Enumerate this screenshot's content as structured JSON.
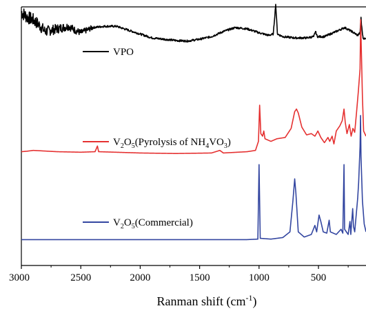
{
  "chart_data": {
    "type": "line",
    "title": "",
    "xlabel": "Ranman shift (cm",
    "xlabel_sup": "-1",
    "xlabel_close": ")",
    "ylabel": "",
    "xlim": [
      3000,
      100
    ],
    "x_reversed": true,
    "y_ticks_shown": false,
    "ylim": [
      0,
      10
    ],
    "x_ticks": [
      "3000",
      "2500",
      "2000",
      "1500",
      "1000",
      "500"
    ],
    "x_tick_values": [
      3000,
      2500,
      2000,
      1500,
      1000,
      500
    ],
    "grid": false,
    "legend": {
      "placement": "inline-left",
      "entries": [
        {
          "series_index": 0,
          "parts": [
            {
              "t": "VPO",
              "s": false
            }
          ]
        },
        {
          "series_index": 1,
          "parts": [
            {
              "t": "V",
              "s": false
            },
            {
              "t": "2",
              "s": true
            },
            {
              "t": "O",
              "s": false
            },
            {
              "t": "5",
              "s": true
            },
            {
              "t": "(Pyrolysis of NH",
              "s": false
            },
            {
              "t": "4",
              "s": true
            },
            {
              "t": "VO",
              "s": false
            },
            {
              "t": "3",
              "s": true
            },
            {
              "t": ")",
              "s": false
            }
          ]
        },
        {
          "series_index": 2,
          "parts": [
            {
              "t": "V",
              "s": false
            },
            {
              "t": "2",
              "s": true
            },
            {
              "t": "O",
              "s": false
            },
            {
              "t": "5",
              "s": true
            },
            {
              "t": "(Commercial)",
              "s": false
            }
          ]
        }
      ]
    },
    "series": [
      {
        "color": "#000000",
        "baseline": 8.9,
        "noise": {
          "from": 3000,
          "to": 2400,
          "amp": 0.55
        },
        "points": [
          [
            3000,
            9.8
          ],
          [
            2950,
            9.6
          ],
          [
            2900,
            9.5
          ],
          [
            2850,
            9.3
          ],
          [
            2800,
            9.05
          ],
          [
            2750,
            9.1
          ],
          [
            2700,
            9.15
          ],
          [
            2650,
            9.2
          ],
          [
            2600,
            9.25
          ],
          [
            2550,
            9.1
          ],
          [
            2500,
            9.0
          ],
          [
            2450,
            9.1
          ],
          [
            2400,
            9.2
          ],
          [
            2300,
            9.25
          ],
          [
            2200,
            9.25
          ],
          [
            2100,
            9.1
          ],
          [
            2000,
            8.95
          ],
          [
            1900,
            8.8
          ],
          [
            1800,
            8.75
          ],
          [
            1700,
            8.7
          ],
          [
            1600,
            8.68
          ],
          [
            1500,
            8.75
          ],
          [
            1400,
            8.85
          ],
          [
            1300,
            9.05
          ],
          [
            1200,
            9.2
          ],
          [
            1100,
            9.15
          ],
          [
            1000,
            9.0
          ],
          [
            920,
            8.9
          ],
          [
            880,
            8.95
          ],
          [
            860,
            10.1
          ],
          [
            845,
            8.95
          ],
          [
            800,
            8.85
          ],
          [
            700,
            8.8
          ],
          [
            600,
            8.8
          ],
          [
            540,
            8.85
          ],
          [
            525,
            9.05
          ],
          [
            510,
            8.85
          ],
          [
            450,
            8.85
          ],
          [
            350,
            9.05
          ],
          [
            280,
            9.2
          ],
          [
            220,
            9.05
          ],
          [
            170,
            8.9
          ],
          [
            150,
            9.0
          ],
          [
            142,
            9.6
          ],
          [
            138,
            9.3
          ],
          [
            125,
            8.8
          ],
          [
            100,
            8.75
          ]
        ]
      },
      {
        "color": "#e53030",
        "baseline": 4.4,
        "noise": {
          "from": 3000,
          "to": 0,
          "amp": 0
        },
        "points": [
          [
            3000,
            4.4
          ],
          [
            2950,
            4.42
          ],
          [
            2900,
            4.45
          ],
          [
            2700,
            4.4
          ],
          [
            2500,
            4.38
          ],
          [
            2380,
            4.4
          ],
          [
            2360,
            4.62
          ],
          [
            2350,
            4.4
          ],
          [
            2000,
            4.35
          ],
          [
            1700,
            4.33
          ],
          [
            1400,
            4.35
          ],
          [
            1330,
            4.45
          ],
          [
            1300,
            4.35
          ],
          [
            1100,
            4.4
          ],
          [
            1030,
            4.45
          ],
          [
            1005,
            4.8
          ],
          [
            995,
            6.2
          ],
          [
            985,
            5.1
          ],
          [
            970,
            5.0
          ],
          [
            960,
            5.2
          ],
          [
            950,
            4.9
          ],
          [
            900,
            4.8
          ],
          [
            850,
            4.9
          ],
          [
            780,
            4.95
          ],
          [
            730,
            5.3
          ],
          [
            700,
            5.95
          ],
          [
            685,
            6.05
          ],
          [
            670,
            5.9
          ],
          [
            640,
            5.35
          ],
          [
            600,
            5.05
          ],
          [
            560,
            5.1
          ],
          [
            530,
            5.0
          ],
          [
            505,
            5.2
          ],
          [
            480,
            4.95
          ],
          [
            450,
            4.75
          ],
          [
            420,
            4.95
          ],
          [
            405,
            4.8
          ],
          [
            385,
            5.0
          ],
          [
            370,
            4.7
          ],
          [
            350,
            5.2
          ],
          [
            320,
            5.4
          ],
          [
            300,
            5.6
          ],
          [
            285,
            6.05
          ],
          [
            275,
            5.55
          ],
          [
            260,
            5.1
          ],
          [
            240,
            5.45
          ],
          [
            225,
            5.0
          ],
          [
            210,
            5.3
          ],
          [
            195,
            5.15
          ],
          [
            180,
            5.9
          ],
          [
            165,
            6.7
          ],
          [
            150,
            7.6
          ],
          [
            145,
            9.5
          ],
          [
            140,
            8.5
          ],
          [
            130,
            6.5
          ],
          [
            120,
            5.2
          ],
          [
            100,
            5.0
          ]
        ]
      },
      {
        "color": "#3245a0",
        "baseline": 1.0,
        "noise": {
          "from": 3000,
          "to": 0,
          "amp": 0
        },
        "points": [
          [
            3000,
            1.0
          ],
          [
            2500,
            1.0
          ],
          [
            2000,
            1.0
          ],
          [
            1500,
            1.0
          ],
          [
            1100,
            1.0
          ],
          [
            1010,
            1.02
          ],
          [
            1000,
            3.9
          ],
          [
            990,
            1.05
          ],
          [
            900,
            1.02
          ],
          [
            800,
            1.08
          ],
          [
            740,
            1.3
          ],
          [
            715,
            2.5
          ],
          [
            700,
            3.35
          ],
          [
            690,
            2.8
          ],
          [
            670,
            1.3
          ],
          [
            620,
            1.1
          ],
          [
            560,
            1.2
          ],
          [
            530,
            1.55
          ],
          [
            515,
            1.3
          ],
          [
            495,
            1.95
          ],
          [
            480,
            1.7
          ],
          [
            460,
            1.3
          ],
          [
            430,
            1.25
          ],
          [
            410,
            1.75
          ],
          [
            400,
            1.3
          ],
          [
            350,
            1.2
          ],
          [
            310,
            1.4
          ],
          [
            295,
            1.25
          ],
          [
            285,
            3.9
          ],
          [
            280,
            1.4
          ],
          [
            250,
            1.2
          ],
          [
            235,
            1.7
          ],
          [
            228,
            1.2
          ],
          [
            212,
            2.2
          ],
          [
            205,
            1.5
          ],
          [
            195,
            1.3
          ],
          [
            170,
            2.6
          ],
          [
            162,
            3.2
          ],
          [
            150,
            4.6
          ],
          [
            146,
            5.8
          ],
          [
            142,
            4.2
          ],
          [
            130,
            2.5
          ],
          [
            115,
            1.6
          ],
          [
            100,
            1.3
          ]
        ]
      }
    ]
  }
}
